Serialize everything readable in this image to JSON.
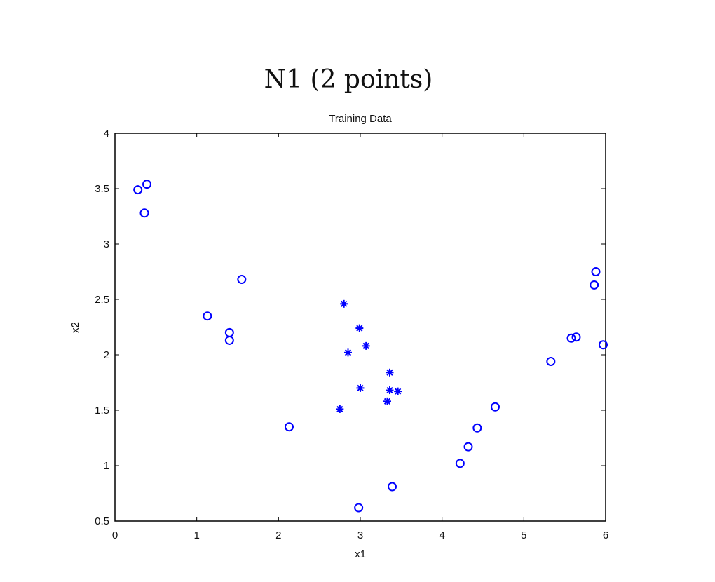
{
  "figure_title": "N1 (2 points)",
  "chart_data": {
    "type": "scatter",
    "title": "Training Data",
    "xlabel": "x1",
    "ylabel": "x2",
    "xlim": [
      0,
      6
    ],
    "ylim": [
      0.5,
      4
    ],
    "xticks": [
      "0",
      "1",
      "2",
      "3",
      "4",
      "5",
      "6"
    ],
    "yticks": [
      "0.5",
      "1",
      "1.5",
      "2",
      "2.5",
      "3",
      "3.5",
      "4"
    ],
    "grid": false,
    "color": "#0000ff",
    "series": [
      {
        "marker": "circle",
        "points": [
          [
            0.28,
            3.49
          ],
          [
            0.39,
            3.54
          ],
          [
            0.36,
            3.28
          ],
          [
            1.55,
            2.68
          ],
          [
            1.13,
            2.35
          ],
          [
            1.4,
            2.2
          ],
          [
            1.4,
            2.13
          ],
          [
            2.13,
            1.35
          ],
          [
            2.98,
            0.62
          ],
          [
            3.39,
            0.81
          ],
          [
            4.22,
            1.02
          ],
          [
            4.32,
            1.17
          ],
          [
            4.43,
            1.34
          ],
          [
            4.65,
            1.53
          ],
          [
            5.33,
            1.94
          ],
          [
            5.58,
            2.15
          ],
          [
            5.64,
            2.16
          ],
          [
            5.88,
            2.75
          ],
          [
            5.86,
            2.63
          ],
          [
            5.97,
            2.09
          ]
        ]
      },
      {
        "marker": "star",
        "points": [
          [
            2.8,
            2.46
          ],
          [
            2.99,
            2.24
          ],
          [
            3.07,
            2.08
          ],
          [
            2.85,
            2.02
          ],
          [
            3.36,
            1.84
          ],
          [
            3.0,
            1.7
          ],
          [
            3.36,
            1.68
          ],
          [
            3.46,
            1.67
          ],
          [
            3.33,
            1.58
          ],
          [
            2.75,
            1.51
          ]
        ]
      }
    ]
  }
}
